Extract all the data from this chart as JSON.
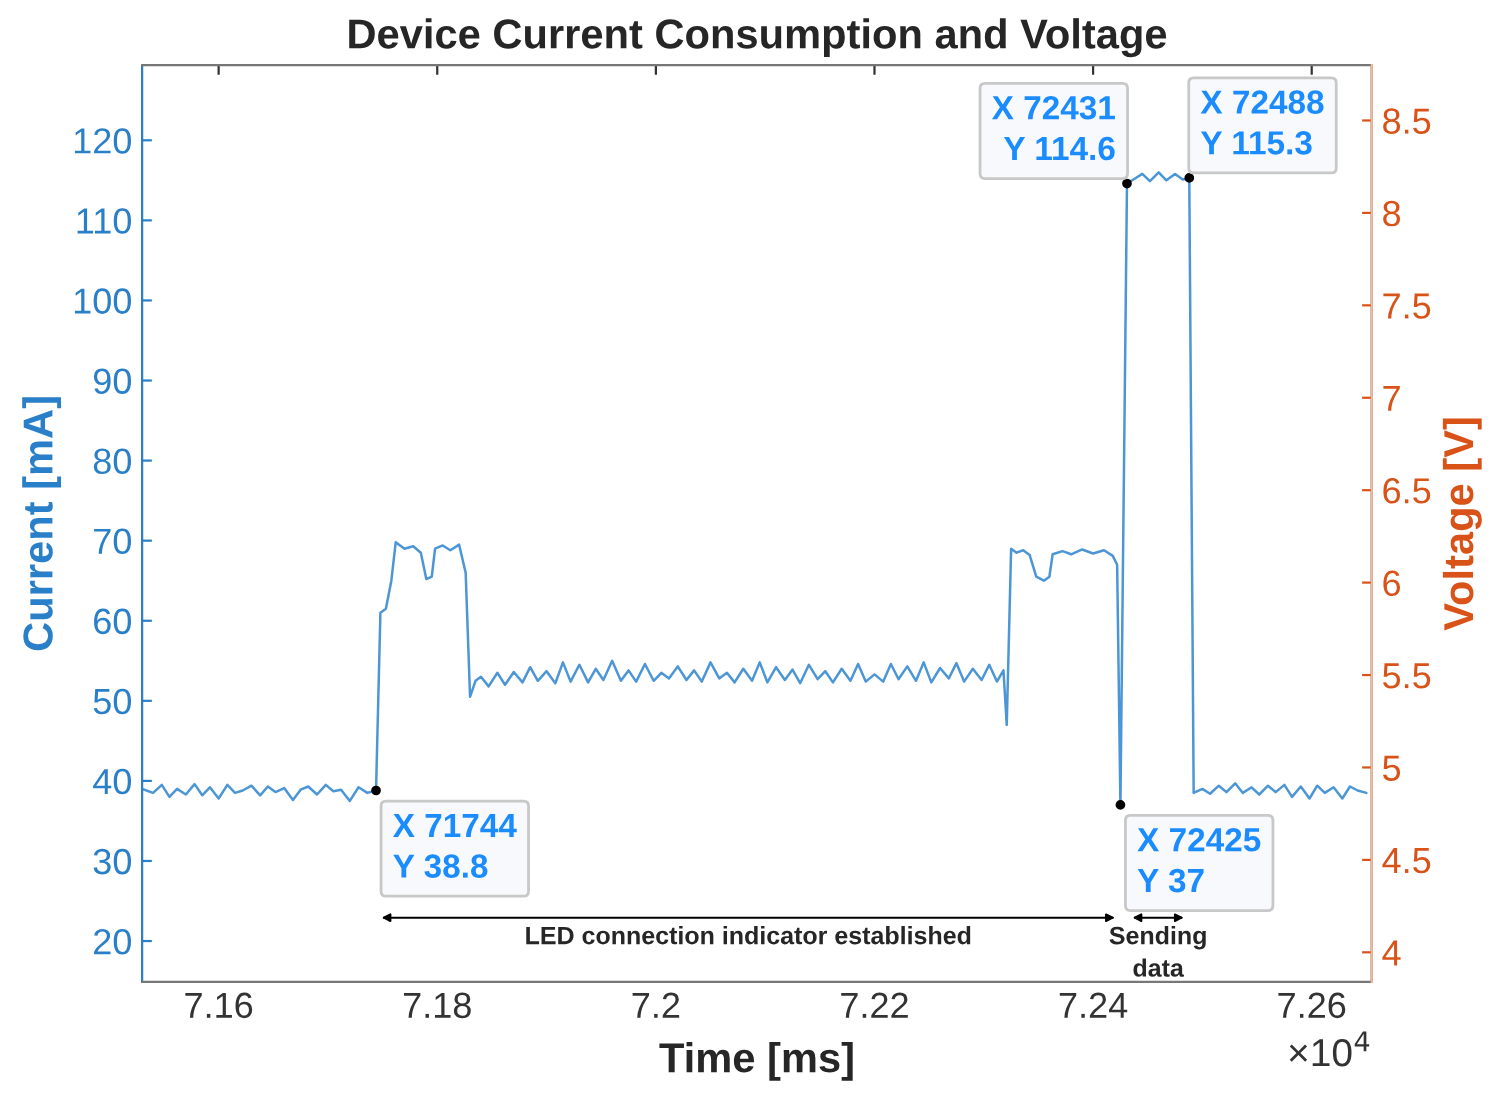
{
  "chart_data": {
    "type": "line",
    "title": "Device Current Consumption and Voltage",
    "xlabel": "Time [ms]",
    "ylabel": "Current [mA]",
    "y2label": "Voltage [V]",
    "series": [
      {
        "color": "#4d96d6",
        "x": [
          7.153,
          7.154,
          7.1548,
          7.1555,
          7.1562,
          7.157,
          7.1578,
          7.1585,
          7.1592,
          7.16,
          7.1608,
          7.1615,
          7.1622,
          7.163,
          7.1638,
          7.1645,
          7.1652,
          7.166,
          7.1668,
          7.1675,
          7.1682,
          7.169,
          7.1698,
          7.1705,
          7.1712,
          7.172,
          7.1728,
          7.1736,
          7.1744,
          7.1748,
          7.1753,
          7.1758,
          7.1762,
          7.177,
          7.1778,
          7.1785,
          7.179,
          7.1795,
          7.1798,
          7.1805,
          7.1812,
          7.182,
          7.1826,
          7.183,
          7.1835,
          7.184,
          7.1847,
          7.1855,
          7.1862,
          7.187,
          7.1878,
          7.1885,
          7.1892,
          7.19,
          7.1908,
          7.1915,
          7.1922,
          7.193,
          7.1938,
          7.1945,
          7.1952,
          7.196,
          7.1968,
          7.1975,
          7.1982,
          7.199,
          7.1998,
          7.2005,
          7.2012,
          7.202,
          7.2028,
          7.2035,
          7.2042,
          7.205,
          7.2058,
          7.2065,
          7.2072,
          7.208,
          7.2088,
          7.2095,
          7.2102,
          7.211,
          7.2118,
          7.2125,
          7.2132,
          7.214,
          7.2148,
          7.2155,
          7.2162,
          7.217,
          7.2178,
          7.2185,
          7.2192,
          7.22,
          7.2208,
          7.2215,
          7.2222,
          7.223,
          7.2238,
          7.2245,
          7.2252,
          7.226,
          7.2268,
          7.2275,
          7.2282,
          7.229,
          7.2298,
          7.2305,
          7.2312,
          7.2318,
          7.2321,
          7.2325,
          7.233,
          7.2336,
          7.2342,
          7.2348,
          7.2355,
          7.236,
          7.2363,
          7.2372,
          7.238,
          7.239,
          7.24,
          7.241,
          7.2418,
          7.2422,
          7.2425,
          7.2431,
          7.2438,
          7.2445,
          7.2452,
          7.246,
          7.2467,
          7.2475,
          7.2482,
          7.2488,
          7.2492,
          7.25,
          7.2507,
          7.2515,
          7.2522,
          7.253,
          7.2537,
          7.2545,
          7.2552,
          7.256,
          7.2567,
          7.2575,
          7.2582,
          7.259,
          7.2598,
          7.2605,
          7.2612,
          7.262,
          7.2628,
          7.2635,
          7.2642,
          7.265
        ],
        "values": [
          39,
          38.5,
          39.5,
          38,
          39,
          38.3,
          39.6,
          38.2,
          39.2,
          37.8,
          39.5,
          38.5,
          38.8,
          39.4,
          38.2,
          39.3,
          38.6,
          39.1,
          37.6,
          38.9,
          39.3,
          38.3,
          39.5,
          38.7,
          38.9,
          37.5,
          39.2,
          38.5,
          38.8,
          61,
          61.5,
          65,
          69.8,
          69,
          69.3,
          68.5,
          65.2,
          65.5,
          69,
          69.4,
          68.8,
          69.5,
          66,
          50.5,
          52.5,
          53,
          51.8,
          53.5,
          52,
          53.6,
          52.3,
          54.2,
          52.5,
          53.7,
          52.2,
          54.8,
          52.4,
          54.5,
          52.3,
          54,
          52.6,
          55,
          52.5,
          53.8,
          52.4,
          54.6,
          52.5,
          53.5,
          52.8,
          54.3,
          52.6,
          53.8,
          52.4,
          54.8,
          52.8,
          53.5,
          52.3,
          54,
          52.5,
          54.8,
          52.3,
          54.2,
          52.6,
          53.9,
          52.2,
          54.5,
          52.7,
          53.7,
          52.3,
          54,
          52.5,
          54.6,
          52.4,
          53.3,
          52.4,
          54.6,
          52.7,
          54.3,
          52.5,
          54.8,
          52.3,
          54.1,
          52.8,
          54.7,
          52.4,
          54,
          52.6,
          54.5,
          52.4,
          53.8,
          47,
          69,
          68.5,
          68.8,
          68.2,
          65.5,
          65,
          65.5,
          68.3,
          68.7,
          68.3,
          68.9,
          68.4,
          68.8,
          68.1,
          67,
          37,
          114.6,
          115.2,
          115.8,
          114.9,
          116,
          115,
          115.8,
          115.1,
          115.3,
          38.5,
          39,
          38.4,
          39.4,
          38.6,
          39.7,
          38.5,
          39.2,
          38.3,
          39.4,
          38.6,
          39.5,
          38,
          39.3,
          37.8,
          39.4,
          38.5,
          39.2,
          37.8,
          39.3,
          38.8,
          38.5
        ]
      }
    ],
    "xlim": [
      7.153,
      7.2655
    ],
    "xticks": [
      7.16,
      7.18,
      7.2,
      7.22,
      7.24,
      7.26
    ],
    "ylim": [
      14.9,
      129.4
    ],
    "yticks": [
      20,
      30,
      40,
      50,
      60,
      70,
      80,
      90,
      100,
      110,
      120
    ],
    "y2lim": [
      3.84,
      8.8
    ],
    "y2ticks": [
      4,
      4.5,
      5,
      5.5,
      6,
      6.5,
      7,
      7.5,
      8,
      8.5
    ],
    "annotations": [
      {
        "text": "X 71744\nY 38.8",
        "x": 7.1744,
        "y": 38.8
      },
      {
        "text": "X 72425\nY 37",
        "x": 7.2425,
        "y": 37
      },
      {
        "text": "X 72431\nY 114.6",
        "x": 7.2431,
        "y": 114.6
      },
      {
        "text": "X 72488\nY 115.3",
        "x": 7.2488,
        "y": 115.3
      },
      "LED connection indicator established",
      "Sending\ndata",
      "×10$^{4}$"
    ],
    "grid": false
  }
}
